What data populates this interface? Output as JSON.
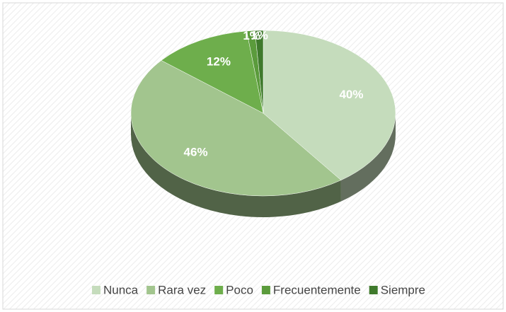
{
  "chart_data": {
    "type": "pie",
    "categories": [
      "Nunca",
      "Rara vez",
      "Poco",
      "Frecuentemente",
      "Siempre"
    ],
    "values": [
      40,
      46,
      12,
      1,
      1
    ],
    "value_labels": [
      "40%",
      "46%",
      "12%",
      "1%",
      "1%"
    ],
    "colors": [
      "#c5dcbc",
      "#a2c58e",
      "#6eae4c",
      "#5b9b3c",
      "#3f7a2c"
    ],
    "legend": "bottom"
  }
}
